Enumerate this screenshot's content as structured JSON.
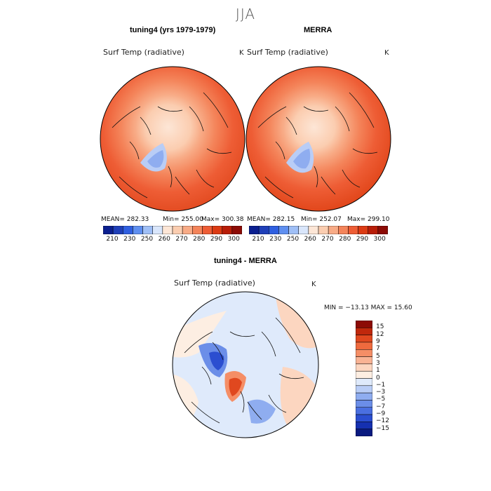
{
  "page": {
    "title": "JJA"
  },
  "chart_data": [
    {
      "type": "heatmap",
      "projection": "polar-stereographic",
      "title": "tuning4 (yrs 1979-1979)",
      "variable": "Surf Temp (radiative)",
      "units": "K",
      "stats": {
        "mean": "MEAN= 282.33",
        "min": "Min= 255.00",
        "max": "Max= 300.38"
      },
      "colorbar": {
        "ticks": [
          "210",
          "230",
          "250",
          "260",
          "270",
          "280",
          "290",
          "300"
        ],
        "colors": [
          "#0b1f8f",
          "#1f3fb8",
          "#2f5fe0",
          "#5f8ff0",
          "#9fbff6",
          "#d9e6fb",
          "#fde6d6",
          "#fbcdb0",
          "#f8ab86",
          "#f4845a",
          "#ee5d35",
          "#dc3b14",
          "#b81d08",
          "#8c0b05"
        ]
      }
    },
    {
      "type": "heatmap",
      "projection": "polar-stereographic",
      "title": "MERRA",
      "variable": "Surf Temp (radiative)",
      "units": "K",
      "stats": {
        "mean": "MEAN= 282.15",
        "min": "Min= 252.07",
        "max": "Max= 299.10"
      },
      "colorbar": {
        "ticks": [
          "210",
          "230",
          "250",
          "260",
          "270",
          "280",
          "290",
          "300"
        ],
        "colors": [
          "#0b1f8f",
          "#1f3fb8",
          "#2f5fe0",
          "#5f8ff0",
          "#9fbff6",
          "#d9e6fb",
          "#fde6d6",
          "#fbcdb0",
          "#f8ab86",
          "#f4845a",
          "#ee5d35",
          "#dc3b14",
          "#b81d08",
          "#8c0b05"
        ]
      }
    },
    {
      "type": "heatmap",
      "projection": "polar-stereographic",
      "title": "tuning4 - MERRA",
      "variable": "Surf Temp (radiative)",
      "units": "K",
      "stats": {
        "minmax": "MIN = −13.13 MAX =  15.60"
      },
      "colorbar": {
        "ticks": [
          "15",
          "12",
          "9",
          "7",
          "5",
          "3",
          "1",
          "0",
          "−1",
          "−3",
          "−5",
          "−7",
          "−9",
          "−12",
          "−15"
        ],
        "colors": [
          "#8c0b05",
          "#c0280c",
          "#e0481f",
          "#ef6a3e",
          "#f58e66",
          "#f9b394",
          "#fcd6c0",
          "#fdeee2",
          "#dfeafb",
          "#b9cdf6",
          "#8fadf0",
          "#6b8ee8",
          "#4a6fe0",
          "#2b4ed0",
          "#1530b0",
          "#0a1a80"
        ]
      }
    }
  ]
}
